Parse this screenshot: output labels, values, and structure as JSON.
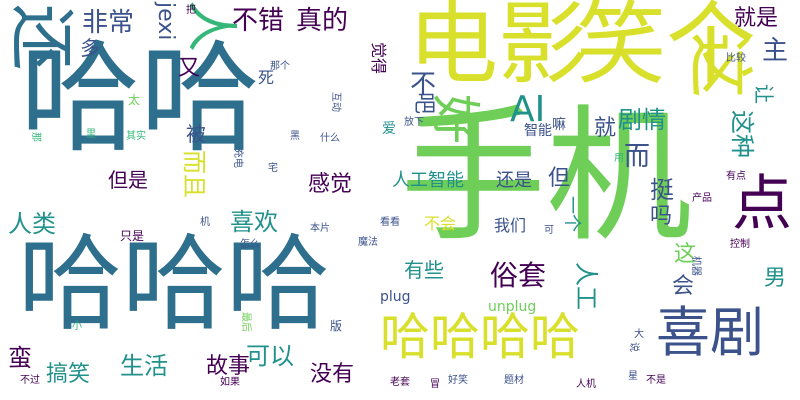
{
  "palette": {
    "navy": "#2f4a7e",
    "slate": "#2e6f8e",
    "teal": "#21918c",
    "green": "#35b779",
    "lime": "#6ece58",
    "yellow": "#d9e02b",
    "purple": "#440154",
    "indigo": "#3b528b"
  },
  "words": [
    {
      "text": "哈哈",
      "c": "slate",
      "s": 120,
      "r": 0
    },
    {
      "text": "哈哈哈",
      "c": "slate",
      "s": 104,
      "r": 0
    },
    {
      "text": "手机",
      "c": "lime",
      "s": 146,
      "r": 0
    },
    {
      "text": "电影",
      "c": "yellow",
      "s": 90,
      "r": 0
    },
    {
      "text": "笑个",
      "c": "yellow",
      "s": 90,
      "r": 0
    },
    {
      "text": "哈哈哈哈",
      "c": "yellow",
      "s": 50,
      "r": 0
    },
    {
      "text": "喜剧",
      "c": "indigo",
      "s": 54,
      "r": 0
    },
    {
      "text": "点",
      "c": "purple",
      "s": 60,
      "r": 0
    },
    {
      "text": "还",
      "c": "slate",
      "s": 66,
      "r": 1
    },
    {
      "text": "这",
      "c": "yellow",
      "s": 66,
      "r": 1
    },
    {
      "text": "好",
      "c": "lime",
      "s": 50,
      "r": 1
    },
    {
      "text": "AI",
      "c": "teal",
      "s": 36,
      "r": 0
    },
    {
      "text": "人",
      "c": "green",
      "s": 52,
      "r": 1
    },
    {
      "text": "不错",
      "c": "purple",
      "s": 26,
      "r": 0
    },
    {
      "text": "真的",
      "c": "purple",
      "s": 26,
      "r": 0
    },
    {
      "text": "非常",
      "c": "indigo",
      "s": 26,
      "r": 0
    },
    {
      "text": "就是",
      "c": "purple",
      "s": 22,
      "r": 0
    },
    {
      "text": "jexi",
      "c": "indigo",
      "s": 22,
      "r": 1
    },
    {
      "text": "主",
      "c": "indigo",
      "s": 26,
      "r": 0
    },
    {
      "text": "多",
      "c": "indigo",
      "s": 20,
      "r": 0
    },
    {
      "text": "又",
      "c": "purple",
      "s": 22,
      "r": 0
    },
    {
      "text": "死",
      "c": "indigo",
      "s": 16,
      "r": 0
    },
    {
      "text": "觉得",
      "c": "purple",
      "s": 16,
      "r": 1
    },
    {
      "text": "不",
      "c": "indigo",
      "s": 26,
      "r": 0
    },
    {
      "text": "吧",
      "c": "indigo",
      "s": 22,
      "r": 1
    },
    {
      "text": "让",
      "c": "teal",
      "s": 20,
      "r": 1
    },
    {
      "text": "这种",
      "c": "teal",
      "s": 24,
      "r": 1
    },
    {
      "text": "剧情",
      "c": "teal",
      "s": 24,
      "r": 0
    },
    {
      "text": "而",
      "c": "indigo",
      "s": 26,
      "r": 0
    },
    {
      "text": "就",
      "c": "indigo",
      "s": 22,
      "r": 0
    },
    {
      "text": "智能",
      "c": "indigo",
      "s": 14,
      "r": 0
    },
    {
      "text": "嘛",
      "c": "indigo",
      "s": 14,
      "r": 0
    },
    {
      "text": "被",
      "c": "indigo",
      "s": 20,
      "r": 0
    },
    {
      "text": "而且",
      "c": "yellow",
      "s": 24,
      "r": 1
    },
    {
      "text": "但是",
      "c": "purple",
      "s": 20,
      "r": 0
    },
    {
      "text": "感觉",
      "c": "purple",
      "s": 22,
      "r": 0
    },
    {
      "text": "人工智能",
      "c": "teal",
      "s": 18,
      "r": 0
    },
    {
      "text": "还是",
      "c": "indigo",
      "s": 18,
      "r": 0
    },
    {
      "text": "但",
      "c": "indigo",
      "s": 22,
      "r": 0
    },
    {
      "text": "挺",
      "c": "indigo",
      "s": 24,
      "r": 0
    },
    {
      "text": "吗",
      "c": "indigo",
      "s": 22,
      "r": 0
    },
    {
      "text": "人类",
      "c": "teal",
      "s": 24,
      "r": 0
    },
    {
      "text": "喜欢",
      "c": "teal",
      "s": 24,
      "r": 0
    },
    {
      "text": "一个",
      "c": "teal",
      "s": 18,
      "r": 1
    },
    {
      "text": "不会",
      "c": "yellow",
      "s": 16,
      "r": 0
    },
    {
      "text": "我们",
      "c": "indigo",
      "s": 16,
      "r": 0
    },
    {
      "text": "有些",
      "c": "teal",
      "s": 20,
      "r": 0
    },
    {
      "text": "俗套",
      "c": "purple",
      "s": 28,
      "r": 0
    },
    {
      "text": "人工",
      "c": "teal",
      "s": 24,
      "r": 1
    },
    {
      "text": "这",
      "c": "lime",
      "s": 22,
      "r": 0
    },
    {
      "text": "会",
      "c": "indigo",
      "s": 22,
      "r": 0
    },
    {
      "text": "男",
      "c": "teal",
      "s": 22,
      "r": 0
    },
    {
      "text": "蛮",
      "c": "purple",
      "s": 24,
      "r": 0
    },
    {
      "text": "搞笑",
      "c": "teal",
      "s": 22,
      "r": 0
    },
    {
      "text": "生活",
      "c": "teal",
      "s": 24,
      "r": 0
    },
    {
      "text": "故事",
      "c": "purple",
      "s": 22,
      "r": 0
    },
    {
      "text": "可以",
      "c": "teal",
      "s": 24,
      "r": 0
    },
    {
      "text": "没有",
      "c": "purple",
      "s": 22,
      "r": 0
    },
    {
      "text": "plug",
      "c": "indigo",
      "s": 14,
      "r": 0
    },
    {
      "text": "unplug",
      "c": "lime",
      "s": 14,
      "r": 0
    },
    {
      "text": "把",
      "c": "purple",
      "s": 10,
      "r": 0
    },
    {
      "text": "那个",
      "c": "indigo",
      "s": 10,
      "r": 0
    },
    {
      "text": "太",
      "c": "lime",
      "s": 12,
      "r": 0
    },
    {
      "text": "互动",
      "c": "indigo",
      "s": 10,
      "r": 1
    },
    {
      "text": "黑",
      "c": "indigo",
      "s": 10,
      "r": 0
    },
    {
      "text": "什么",
      "c": "indigo",
      "s": 10,
      "r": 0
    },
    {
      "text": "爱",
      "c": "teal",
      "s": 14,
      "r": 0
    },
    {
      "text": "放下",
      "c": "indigo",
      "s": 10,
      "r": 0
    },
    {
      "text": "里",
      "c": "green",
      "s": 10,
      "r": 0
    },
    {
      "text": "其实",
      "c": "green",
      "s": 10,
      "r": 0
    },
    {
      "text": "充电",
      "c": "indigo",
      "s": 10,
      "r": 1
    },
    {
      "text": "宅",
      "c": "indigo",
      "s": 10,
      "r": 0
    },
    {
      "text": "那",
      "c": "green",
      "s": 10,
      "r": 1
    },
    {
      "text": "比较",
      "c": "indigo",
      "s": 10,
      "r": 0
    },
    {
      "text": "用",
      "c": "green",
      "s": 10,
      "r": 0
    },
    {
      "text": "有点",
      "c": "purple",
      "s": 10,
      "r": 0
    },
    {
      "text": "产品",
      "c": "purple",
      "s": 10,
      "r": 0
    },
    {
      "text": "机",
      "c": "indigo",
      "s": 10,
      "r": 0
    },
    {
      "text": "只是",
      "c": "purple",
      "s": 12,
      "r": 0
    },
    {
      "text": "怎么",
      "c": "indigo",
      "s": 10,
      "r": 0
    },
    {
      "text": "本片",
      "c": "indigo",
      "s": 10,
      "r": 0
    },
    {
      "text": "看看",
      "c": "indigo",
      "s": 10,
      "r": 0
    },
    {
      "text": "可",
      "c": "indigo",
      "s": 10,
      "r": 0
    },
    {
      "text": "魔法",
      "c": "indigo",
      "s": 10,
      "r": 0
    },
    {
      "text": "机器",
      "c": "indigo",
      "s": 10,
      "r": 1
    },
    {
      "text": "控制",
      "c": "purple",
      "s": 10,
      "r": 0
    },
    {
      "text": "小",
      "c": "green",
      "s": 10,
      "r": 0
    },
    {
      "text": "版",
      "c": "indigo",
      "s": 12,
      "r": 0
    },
    {
      "text": "最后",
      "c": "lime",
      "s": 10,
      "r": 1
    },
    {
      "text": "大",
      "c": "indigo",
      "s": 10,
      "r": 0
    },
    {
      "text": "说",
      "c": "indigo",
      "s": 10,
      "r": 1
    },
    {
      "text": "不过",
      "c": "purple",
      "s": 10,
      "r": 0
    },
    {
      "text": "如果",
      "c": "purple",
      "s": 10,
      "r": 0
    },
    {
      "text": "老套",
      "c": "purple",
      "s": 10,
      "r": 0
    },
    {
      "text": "冒",
      "c": "purple",
      "s": 10,
      "r": 0
    },
    {
      "text": "好笑",
      "c": "indigo",
      "s": 10,
      "r": 0
    },
    {
      "text": "题材",
      "c": "indigo",
      "s": 10,
      "r": 0
    },
    {
      "text": "人机",
      "c": "purple",
      "s": 10,
      "r": 0
    },
    {
      "text": "星",
      "c": "indigo",
      "s": 10,
      "r": 0
    },
    {
      "text": "不是",
      "c": "purple",
      "s": 10,
      "r": 0
    }
  ]
}
